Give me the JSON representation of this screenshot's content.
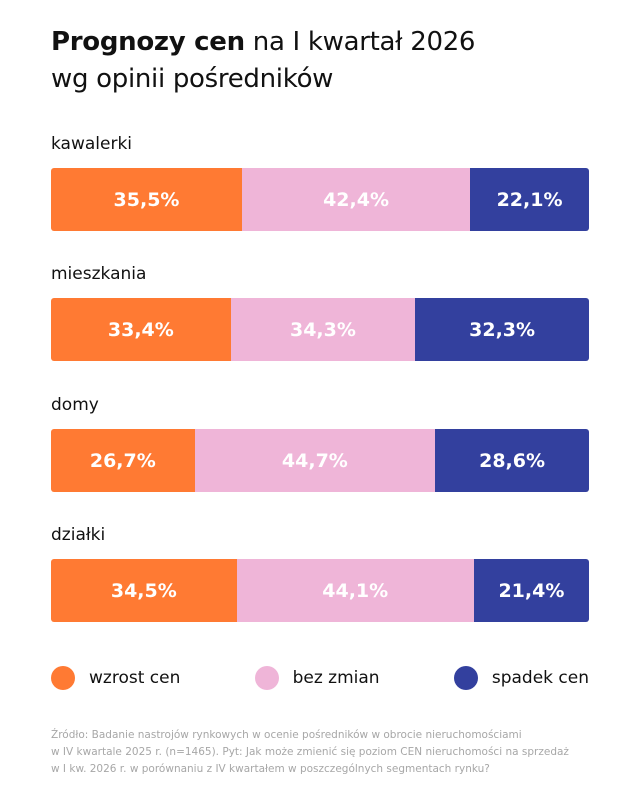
{
  "title_bold": "Prognozy cen",
  "title_rest": " na I kwartał 2026",
  "title_line2": "wg opinii pośredników",
  "chart_data": {
    "type": "bar",
    "orientation": "horizontal-stacked-100",
    "categories": [
      "kawalerki",
      "mieszkania",
      "domy",
      "działki"
    ],
    "series": [
      {
        "name": "wzrost cen",
        "color": "#FF7A33",
        "values": [
          35.5,
          33.4,
          26.7,
          34.5
        ],
        "labels": [
          "35,5%",
          "33,4%",
          "26,7%",
          "34,5%"
        ]
      },
      {
        "name": "bez zmian",
        "color": "#EFB5D8",
        "values": [
          42.4,
          34.3,
          44.7,
          44.1
        ],
        "labels": [
          "42,4%",
          "34,3%",
          "44,7%",
          "44,1%"
        ]
      },
      {
        "name": "spadek cen",
        "color": "#33409E",
        "values": [
          22.1,
          32.3,
          28.6,
          21.4
        ],
        "labels": [
          "22,1%",
          "32,3%",
          "28,6%",
          "21,4%"
        ]
      }
    ],
    "legend_position": "bottom",
    "grid": false
  },
  "source_lines": [
    "Źródło: Badanie nastrojów rynkowych w ocenie pośredników w obrocie nieruchomościami",
    "w IV kwartale 2025 r. (n=1465). Pyt: Jak może zmienić się poziom CEN nieruchomości na sprzedaż",
    "w I kw. 2026 r. w porównaniu z IV kwartałem w poszczególnych segmentach rynku?"
  ]
}
